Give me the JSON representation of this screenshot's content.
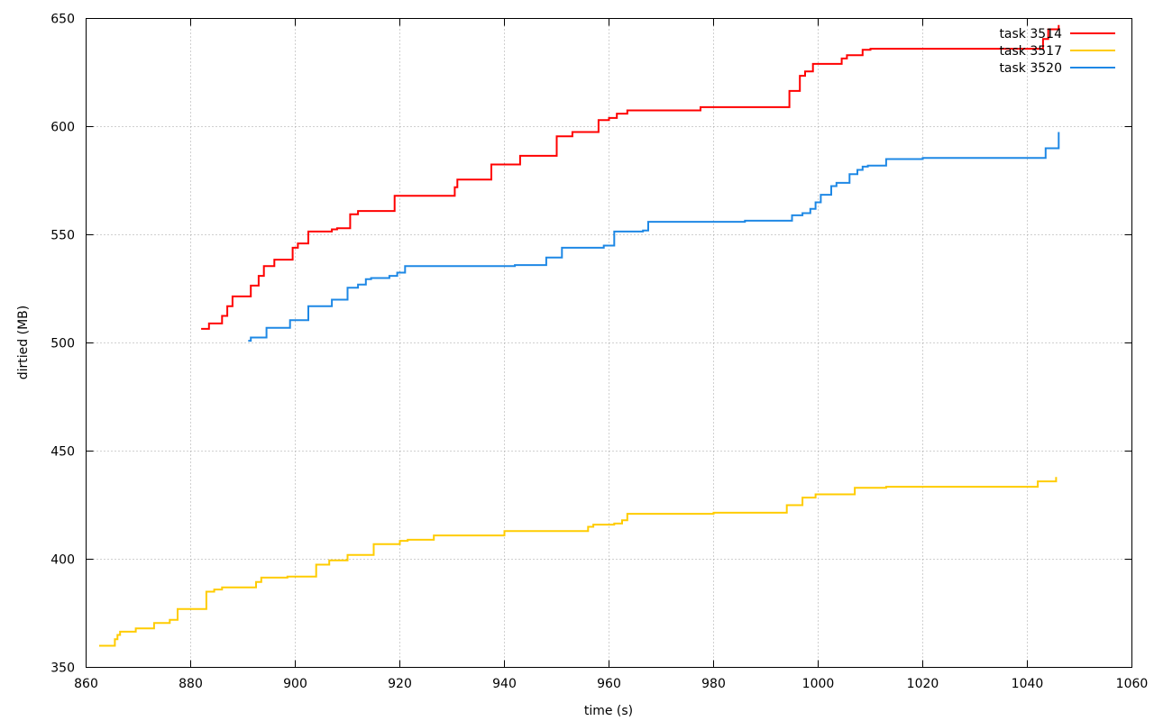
{
  "chart_data": {
    "type": "line",
    "title": "",
    "xlabel": "time (s)",
    "ylabel": "dirtied (MB)",
    "xlim": [
      860,
      1060
    ],
    "ylim": [
      350,
      650
    ],
    "xticks": [
      860,
      880,
      900,
      920,
      940,
      960,
      980,
      1000,
      1020,
      1040,
      1060
    ],
    "yticks": [
      350,
      400,
      450,
      500,
      550,
      600,
      650
    ],
    "grid": true,
    "legend_position": "top-right",
    "step": true,
    "series": [
      {
        "name": "task 3514",
        "color": "#ff0000",
        "x": [
          882,
          883.5,
          886,
          887,
          888,
          891.5,
          893,
          894,
          896,
          899.5,
          900.5,
          902.5,
          907,
          908,
          910.5,
          912,
          919,
          930.5,
          931,
          937.5,
          943,
          950,
          953,
          958,
          960,
          961.5,
          963.5,
          977.5,
          990,
          994.5,
          996.5,
          997.5,
          999,
          1004.5,
          1005.5,
          1008.5,
          1010,
          1043,
          1044,
          1046
        ],
        "y": [
          506.5,
          509,
          512.5,
          517,
          521.5,
          526.5,
          531,
          535.5,
          538.5,
          544,
          546,
          551.5,
          552.5,
          553,
          559.5,
          561,
          568,
          572,
          575.5,
          582.5,
          586.5,
          595.5,
          597.5,
          603,
          604,
          606,
          607.5,
          609,
          609,
          616.5,
          623.5,
          625.5,
          629,
          631.5,
          633,
          635.5,
          636,
          640.5,
          645,
          647
        ]
      },
      {
        "name": "task 3517",
        "color": "#ffcc00",
        "x": [
          862.5,
          865.5,
          866,
          866.5,
          869.5,
          873,
          876,
          877.5,
          883,
          884.5,
          886,
          892.5,
          893.5,
          898.5,
          904,
          906.5,
          910,
          915,
          920,
          921.5,
          926.5,
          940,
          956,
          957,
          961,
          962.5,
          963.5,
          980,
          994,
          997,
          999.5,
          1007,
          1013,
          1042,
          1045.5
        ],
        "y": [
          360,
          363,
          365,
          366.5,
          368,
          370.5,
          372,
          377,
          385,
          386,
          387,
          389.5,
          391.5,
          392,
          397.5,
          399.5,
          402,
          407,
          408.5,
          409,
          411,
          413,
          415,
          416,
          416.5,
          418,
          421,
          421.5,
          425,
          428.5,
          430,
          433,
          433.5,
          436,
          438
        ]
      },
      {
        "name": "task 3520",
        "color": "#1e88e5",
        "x": [
          891,
          891.5,
          894.5,
          899,
          902.5,
          907,
          910,
          912,
          913.5,
          914.5,
          918,
          919.5,
          921,
          930,
          942,
          948,
          951,
          959,
          961,
          966.5,
          967.5,
          980,
          986,
          995,
          997,
          998.5,
          999.5,
          1000.5,
          1002.5,
          1003.5,
          1006,
          1007.5,
          1008.5,
          1009.5,
          1013,
          1020,
          1042.5,
          1043.5,
          1046
        ],
        "y": [
          501,
          502.5,
          507,
          510.5,
          517,
          520,
          525.5,
          527,
          529.5,
          530,
          531,
          532.5,
          535.5,
          535.5,
          536,
          539.5,
          544,
          545,
          551.5,
          552,
          556,
          556,
          556.5,
          559,
          560,
          562,
          565,
          568.5,
          572.5,
          574,
          578,
          580,
          581.5,
          582,
          585,
          585.5,
          585.5,
          590,
          597.5
        ]
      }
    ]
  }
}
